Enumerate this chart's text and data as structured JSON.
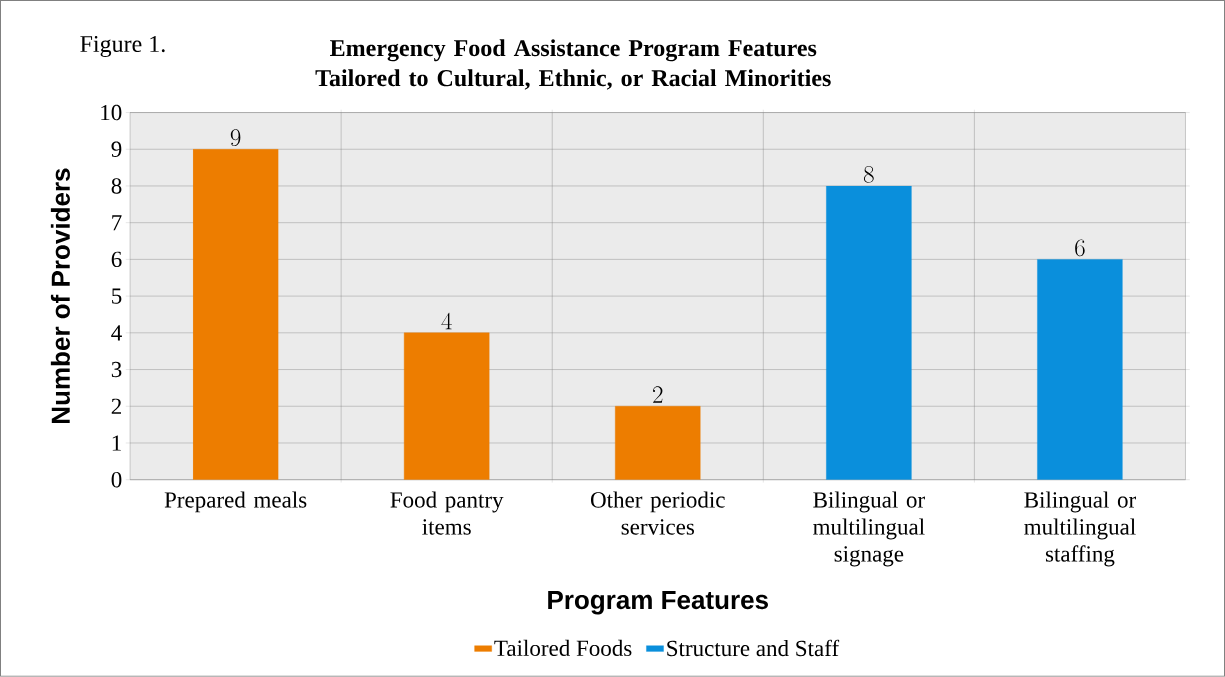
{
  "chart_data": {
    "type": "bar",
    "title": "Emergency Food Assistance Program Features Tailored to Cultural, Ethnic, or Racial Minorities",
    "annotations": [
      "Figure 1."
    ],
    "xlabel": "Program Features",
    "ylabel": "Number of Providers",
    "categories": [
      "Prepared meals",
      "Food pantry items",
      "Other periodic services",
      "Bilingual or multilingual signage",
      "Bilingual or multilingual staffing"
    ],
    "series": [
      {
        "name": "Tailored Foods",
        "color": "#ed7d00",
        "values": [
          9,
          4,
          2,
          null,
          null
        ]
      },
      {
        "name": "Structure and Staff",
        "color": "#0a8fdc",
        "values": [
          null,
          null,
          null,
          8,
          6
        ]
      }
    ],
    "ylim": [
      0,
      10
    ],
    "yticks": [
      0,
      1,
      2,
      3,
      4,
      5,
      6,
      7,
      8,
      9,
      10
    ],
    "grid": true,
    "legend": "bottom",
    "data_labels": true
  }
}
